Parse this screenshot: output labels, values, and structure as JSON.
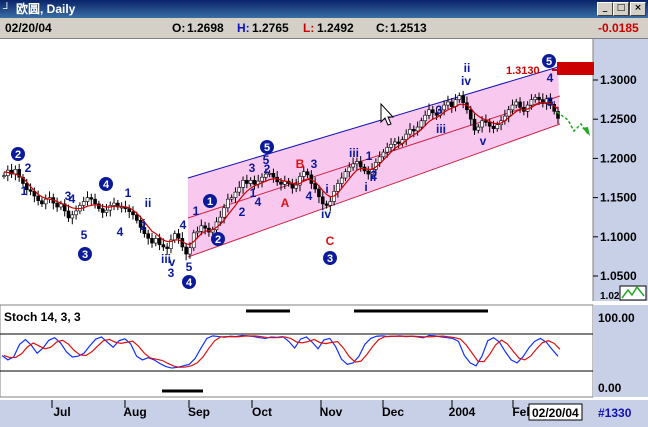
{
  "window": {
    "title": "欧圆, Daily",
    "min_glyph": "_",
    "max_glyph": "□",
    "close_glyph": "×"
  },
  "header": {
    "date": "02/20/04",
    "open_label": "O:",
    "open": "1.2698",
    "high_label": "H:",
    "high": "1.2765",
    "low_label": "L:",
    "low": "1.2492",
    "close_label": "C:",
    "close": "1.2513",
    "change": "-0.0185"
  },
  "colors": {
    "candle": "#000000",
    "ma": "#cc0000",
    "channel_fill": "#f9c8ef",
    "channel_upper": "#1010b0",
    "channel_lower": "#cc2244",
    "wave_label": "#0a1a9a",
    "corrective_label": "#dd1111",
    "stoch_k": "#1030ff",
    "stoch_d": "#dd1111",
    "projection": "#22aa22"
  },
  "chart_data": [
    {
      "type": "candlestick",
      "title": "欧圆, Daily",
      "xlabel": "",
      "ylabel": "",
      "ylim": [
        1.02,
        1.355
      ],
      "y_ticks": [
        "1.3000",
        "1.2500",
        "1.2000",
        "1.1500",
        "1.1000",
        "1.0500",
        "1.02"
      ],
      "x_ticks": [
        "Jul",
        "Aug",
        "Sep",
        "Oct",
        "Nov",
        "Dec",
        "2004",
        "Feb"
      ],
      "date_marker": "02/20/04",
      "bar_count_label": "#1330",
      "price_label": "1.3130",
      "approx_close_series": [
        1.178,
        1.185,
        1.18,
        1.186,
        1.176,
        1.168,
        1.16,
        1.158,
        1.152,
        1.146,
        1.142,
        1.148,
        1.15,
        1.143,
        1.138,
        1.142,
        1.133,
        1.124,
        1.128,
        1.133,
        1.14,
        1.145,
        1.15,
        1.148,
        1.142,
        1.136,
        1.131,
        1.134,
        1.14,
        1.143,
        1.138,
        1.138,
        1.136,
        1.132,
        1.128,
        1.121,
        1.112,
        1.104,
        1.098,
        1.092,
        1.098,
        1.09,
        1.087,
        1.085,
        1.096,
        1.104,
        1.098,
        1.087,
        1.078,
        1.086,
        1.105,
        1.107,
        1.114,
        1.111,
        1.106,
        1.109,
        1.119,
        1.125,
        1.137,
        1.148,
        1.15,
        1.157,
        1.163,
        1.172,
        1.168,
        1.172,
        1.167,
        1.171,
        1.176,
        1.18,
        1.181,
        1.176,
        1.17,
        1.167,
        1.171,
        1.168,
        1.162,
        1.166,
        1.177,
        1.183,
        1.179,
        1.168,
        1.161,
        1.151,
        1.142,
        1.14,
        1.145,
        1.158,
        1.168,
        1.175,
        1.183,
        1.189,
        1.193,
        1.196,
        1.189,
        1.184,
        1.18,
        1.186,
        1.195,
        1.202,
        1.208,
        1.214,
        1.218,
        1.221,
        1.219,
        1.224,
        1.231,
        1.237,
        1.235,
        1.24,
        1.248,
        1.255,
        1.262,
        1.258,
        1.255,
        1.262,
        1.268,
        1.272,
        1.266,
        1.275,
        1.28,
        1.271,
        1.262,
        1.25,
        1.236,
        1.24,
        1.248,
        1.246,
        1.241,
        1.238,
        1.243,
        1.248,
        1.254,
        1.262,
        1.268,
        1.272,
        1.265,
        1.26,
        1.268,
        1.275,
        1.278,
        1.275,
        1.27,
        1.276,
        1.269,
        1.26,
        1.251
      ],
      "ma_series": [
        1.183,
        1.182,
        1.181,
        1.18,
        1.178,
        1.175,
        1.17,
        1.164,
        1.159,
        1.154,
        1.151,
        1.149,
        1.148,
        1.147,
        1.145,
        1.143,
        1.141,
        1.139,
        1.137,
        1.136,
        1.136,
        1.137,
        1.139,
        1.14,
        1.141,
        1.14,
        1.139,
        1.138,
        1.138,
        1.139,
        1.139,
        1.139,
        1.138,
        1.137,
        1.134,
        1.13,
        1.125,
        1.119,
        1.113,
        1.107,
        1.104,
        1.1,
        1.096,
        1.094,
        1.094,
        1.096,
        1.096,
        1.094,
        1.091,
        1.09,
        1.094,
        1.099,
        1.104,
        1.107,
        1.108,
        1.109,
        1.112,
        1.116,
        1.121,
        1.128,
        1.134,
        1.14,
        1.147,
        1.153,
        1.158,
        1.162,
        1.165,
        1.167,
        1.169,
        1.171,
        1.173,
        1.174,
        1.174,
        1.172,
        1.171,
        1.17,
        1.168,
        1.167,
        1.168,
        1.171,
        1.173,
        1.173,
        1.17,
        1.165,
        1.159,
        1.154,
        1.151,
        1.152,
        1.156,
        1.162,
        1.168,
        1.174,
        1.18,
        1.185,
        1.187,
        1.187,
        1.186,
        1.186,
        1.189,
        1.193,
        1.198,
        1.203,
        1.208,
        1.213,
        1.216,
        1.219,
        1.223,
        1.227,
        1.23,
        1.233,
        1.237,
        1.242,
        1.247,
        1.25,
        1.252,
        1.255,
        1.259,
        1.262,
        1.264,
        1.266,
        1.269,
        1.269,
        1.268,
        1.264,
        1.258,
        1.254,
        1.251,
        1.249,
        1.247,
        1.245,
        1.244,
        1.245,
        1.248,
        1.252,
        1.256,
        1.26,
        1.262,
        1.262,
        1.263,
        1.265,
        1.268,
        1.27,
        1.271,
        1.271,
        1.27,
        1.267,
        1.263
      ],
      "wave_labels": [
        "2",
        "1",
        "3",
        "4",
        "5",
        "4",
        "1",
        "2",
        "ii",
        "i",
        "3",
        "iii",
        "v",
        "5",
        "4",
        "1",
        "2",
        "1",
        "2",
        "3",
        "4",
        "5",
        "3",
        "A",
        "B",
        "C",
        "4",
        "i",
        "iv",
        "ii",
        "iii",
        "1",
        "i",
        "2",
        "ii",
        "3",
        "iii",
        "iv",
        "v",
        "4",
        "5",
        "5"
      ],
      "wave_labels_circled": [
        "2",
        "4",
        "3",
        "5",
        "1",
        "2",
        "3",
        "4",
        "5"
      ],
      "corrective_labels": [
        "A",
        "B",
        "C"
      ]
    },
    {
      "type": "line",
      "title": "Stoch 14, 3, 3",
      "ylim": [
        0,
        100
      ],
      "y_ticks": [
        "100.00",
        "0.00"
      ],
      "series": [
        {
          "name": "",
          "values": [
            42,
            30,
            38,
            72,
            85,
            70,
            48,
            62,
            83,
            90,
            76,
            52,
            38,
            40,
            48,
            68,
            86,
            92,
            78,
            64,
            82,
            87,
            73,
            40,
            30,
            36,
            30,
            20,
            12,
            8,
            10,
            14,
            18,
            34,
            62,
            88,
            95,
            93,
            91,
            94,
            93,
            96,
            95,
            93,
            90,
            88,
            92,
            91,
            93,
            80,
            62,
            86,
            92,
            78,
            60,
            84,
            88,
            66,
            32,
            18,
            22,
            40,
            72,
            88,
            94,
            95,
            93,
            94,
            95,
            93,
            94,
            92,
            90,
            96,
            95,
            92,
            90,
            88,
            80,
            42,
            22,
            14,
            40,
            82,
            90,
            78,
            52,
            30,
            22,
            38,
            62,
            80,
            88,
            78,
            58,
            40
          ]
        }
      ]
    }
  ]
}
